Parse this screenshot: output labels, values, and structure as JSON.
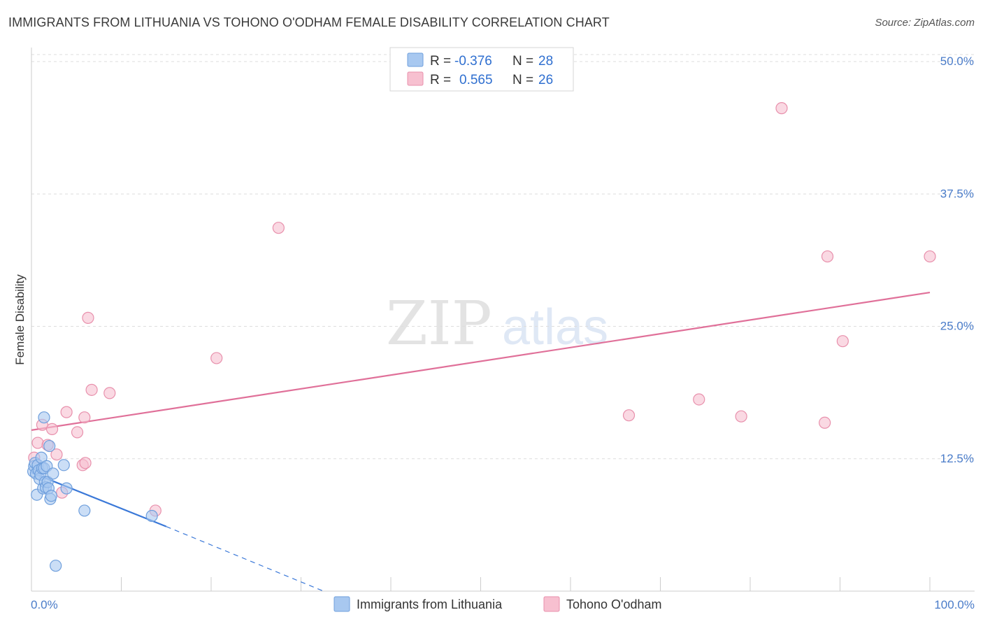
{
  "title": "IMMIGRANTS FROM LITHUANIA VS TOHONO O'ODHAM FEMALE DISABILITY CORRELATION CHART",
  "source": "Source: ZipAtlas.com",
  "watermark": {
    "zip": "ZIP",
    "atlas": "atlas"
  },
  "colors": {
    "blue_fill": "#a8c8f0",
    "blue_stroke": "#6f9fdc",
    "blue_line": "#3a78d8",
    "pink_fill": "#f7c0d0",
    "pink_stroke": "#e890ac",
    "pink_line": "#e07099",
    "grid": "#dddddd",
    "tick_label": "#4a7cc9"
  },
  "legend": {
    "rows": [
      {
        "r_label": "R =",
        "r_value": "-0.376",
        "n_label": "N =",
        "n_value": "28"
      },
      {
        "r_label": "R =",
        "r_value": "0.565",
        "n_label": "N =",
        "n_value": "26"
      }
    ]
  },
  "chart_data": {
    "type": "scatter",
    "title": "IMMIGRANTS FROM LITHUANIA VS TOHONO O'ODHAM FEMALE DISABILITY CORRELATION CHART",
    "xlabel": "",
    "ylabel": "Female Disability",
    "xlim": [
      0,
      100
    ],
    "ylim": [
      0,
      50
    ],
    "x_tick_labels": [
      "0.0%",
      "100.0%"
    ],
    "y_ticks": [
      12.5,
      25.0,
      37.5,
      50.0
    ],
    "y_tick_labels": [
      "12.5%",
      "25.0%",
      "37.5%",
      "50.0%"
    ],
    "grid": true,
    "legend_position": "bottom",
    "series": [
      {
        "name": "Immigrants from Lithuania",
        "color": "#a8c8f0",
        "r": -0.376,
        "n": 28,
        "points": [
          [
            0.2,
            11.3
          ],
          [
            0.3,
            11.8
          ],
          [
            0.4,
            12.1
          ],
          [
            0.5,
            11.1
          ],
          [
            0.6,
            9.1
          ],
          [
            0.7,
            11.9
          ],
          [
            0.8,
            11.4
          ],
          [
            0.9,
            10.6
          ],
          [
            1.0,
            11.0
          ],
          [
            1.1,
            12.6
          ],
          [
            1.2,
            11.6
          ],
          [
            1.3,
            9.7
          ],
          [
            1.4,
            11.6
          ],
          [
            1.4,
            16.4
          ],
          [
            1.5,
            10.3
          ],
          [
            1.6,
            9.8
          ],
          [
            1.7,
            11.8
          ],
          [
            1.8,
            10.3
          ],
          [
            1.9,
            9.7
          ],
          [
            2.0,
            13.7
          ],
          [
            2.1,
            8.7
          ],
          [
            2.2,
            9.0
          ],
          [
            2.4,
            11.1
          ],
          [
            2.7,
            2.4
          ],
          [
            3.6,
            11.9
          ],
          [
            3.9,
            9.7
          ],
          [
            5.9,
            7.6
          ],
          [
            13.4,
            7.1
          ]
        ],
        "trend": {
          "x_start": 0,
          "y_start": 11.2,
          "x_end": 15,
          "y_end": 6.1,
          "x_dash_end": 32.5,
          "y_dash_end": 0
        }
      },
      {
        "name": "Tohono O'odham",
        "color": "#f7c0d0",
        "r": 0.565,
        "n": 26,
        "points": [
          [
            0.3,
            12.6
          ],
          [
            0.7,
            14.0
          ],
          [
            1.2,
            15.7
          ],
          [
            1.8,
            13.8
          ],
          [
            2.3,
            15.3
          ],
          [
            2.8,
            12.9
          ],
          [
            3.4,
            9.3
          ],
          [
            3.9,
            16.9
          ],
          [
            5.1,
            15.0
          ],
          [
            5.7,
            11.9
          ],
          [
            6.0,
            12.1
          ],
          [
            5.9,
            16.4
          ],
          [
            6.3,
            25.8
          ],
          [
            6.7,
            19.0
          ],
          [
            8.7,
            18.7
          ],
          [
            13.8,
            7.6
          ],
          [
            20.6,
            22.0
          ],
          [
            27.5,
            34.3
          ],
          [
            66.5,
            16.6
          ],
          [
            74.3,
            18.1
          ],
          [
            79.0,
            16.5
          ],
          [
            83.5,
            45.6
          ],
          [
            88.3,
            15.9
          ],
          [
            88.6,
            31.6
          ],
          [
            90.3,
            23.6
          ],
          [
            100.0,
            31.6
          ]
        ],
        "trend": {
          "x_start": 0,
          "y_start": 15.2,
          "x_end": 100,
          "y_end": 28.2
        }
      }
    ]
  }
}
